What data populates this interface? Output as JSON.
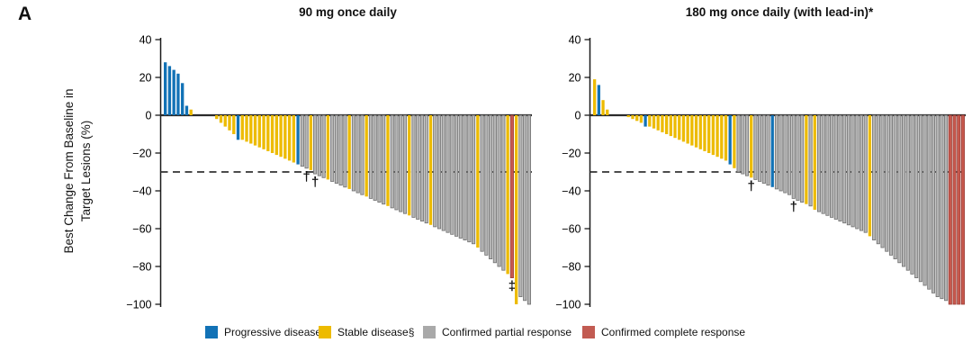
{
  "figure": {
    "panel_label": "A",
    "y_axis_label_line1": "Best Change From Baseline in",
    "y_axis_label_line2": "Target Lesions (%)"
  },
  "legend": {
    "items": [
      {
        "label": "Progressive disease",
        "code": "PD",
        "color": "#1272B6"
      },
      {
        "label": "Stable disease§",
        "code": "SD",
        "color": "#EDBB00"
      },
      {
        "label": "Confirmed partial response",
        "code": "PR",
        "color": "#A9A9A9"
      },
      {
        "label": "Confirmed complete response",
        "code": "CR",
        "color": "#C25B52"
      }
    ]
  },
  "chart_data": [
    {
      "type": "bar",
      "subtype": "waterfall",
      "title": "90 mg once daily",
      "ylabel": "Best Change From Baseline in Target Lesions (%)",
      "ylim": [
        -100,
        40
      ],
      "yticks": [
        40,
        20,
        0,
        -20,
        -40,
        -60,
        -80,
        -100
      ],
      "ytick_labels": [
        "40",
        "20",
        "0",
        "−20",
        "−40",
        "−60",
        "−80",
        "−100"
      ],
      "reference_line": -30,
      "grid": false,
      "bars": [
        [
          28,
          "PD"
        ],
        [
          26,
          "PD"
        ],
        [
          24,
          "PD"
        ],
        [
          22,
          "PD"
        ],
        [
          17,
          "PD"
        ],
        [
          5,
          "PD"
        ],
        [
          3,
          "SD"
        ],
        [
          0,
          "SD"
        ],
        [
          0,
          "SD"
        ],
        [
          0,
          "SD"
        ],
        [
          0,
          "SD"
        ],
        [
          0,
          "SD"
        ],
        [
          -2,
          "SD"
        ],
        [
          -4,
          "SD"
        ],
        [
          -6,
          "SD"
        ],
        [
          -8,
          "SD"
        ],
        [
          -10,
          "SD"
        ],
        [
          -13,
          "PD"
        ],
        [
          -13,
          "SD"
        ],
        [
          -14,
          "SD"
        ],
        [
          -15,
          "SD"
        ],
        [
          -16,
          "SD"
        ],
        [
          -17,
          "SD"
        ],
        [
          -18,
          "SD"
        ],
        [
          -19,
          "SD"
        ],
        [
          -20,
          "SD"
        ],
        [
          -21,
          "SD"
        ],
        [
          -22,
          "SD"
        ],
        [
          -23,
          "SD"
        ],
        [
          -24,
          "SD"
        ],
        [
          -25,
          "SD"
        ],
        [
          -26,
          "PD"
        ],
        [
          -27,
          "PR"
        ],
        [
          -28,
          "PR",
          "†"
        ],
        [
          -29,
          "SD"
        ],
        [
          -31,
          "PR",
          "†"
        ],
        [
          -32,
          "PR"
        ],
        [
          -33,
          "PR"
        ],
        [
          -34,
          "SD"
        ],
        [
          -35,
          "PR"
        ],
        [
          -36,
          "PR"
        ],
        [
          -37,
          "PR"
        ],
        [
          -38,
          "PR"
        ],
        [
          -39,
          "SD"
        ],
        [
          -40,
          "PR"
        ],
        [
          -41,
          "PR"
        ],
        [
          -42,
          "PR"
        ],
        [
          -43,
          "SD"
        ],
        [
          -44,
          "PR"
        ],
        [
          -45,
          "PR"
        ],
        [
          -46,
          "PR"
        ],
        [
          -47,
          "PR"
        ],
        [
          -48,
          "SD"
        ],
        [
          -49,
          "PR"
        ],
        [
          -50,
          "PR"
        ],
        [
          -51,
          "PR"
        ],
        [
          -52,
          "PR"
        ],
        [
          -53,
          "SD"
        ],
        [
          -54,
          "PR"
        ],
        [
          -55,
          "PR"
        ],
        [
          -56,
          "PR"
        ],
        [
          -57,
          "PR"
        ],
        [
          -58,
          "SD"
        ],
        [
          -59,
          "PR"
        ],
        [
          -60,
          "PR"
        ],
        [
          -61,
          "PR"
        ],
        [
          -62,
          "PR"
        ],
        [
          -63,
          "PR"
        ],
        [
          -64,
          "PR"
        ],
        [
          -65,
          "PR"
        ],
        [
          -66,
          "PR"
        ],
        [
          -67,
          "PR"
        ],
        [
          -68,
          "PR"
        ],
        [
          -70,
          "SD"
        ],
        [
          -72,
          "PR"
        ],
        [
          -74,
          "PR"
        ],
        [
          -76,
          "PR"
        ],
        [
          -78,
          "PR"
        ],
        [
          -80,
          "PR"
        ],
        [
          -82,
          "PR"
        ],
        [
          -84,
          "SD"
        ],
        [
          -86,
          "CR",
          "‡"
        ],
        [
          -100,
          "SD"
        ],
        [
          -96,
          "PR"
        ],
        [
          -98,
          "PR"
        ],
        [
          -100,
          "PR"
        ]
      ]
    },
    {
      "type": "bar",
      "subtype": "waterfall",
      "title": "180 mg once daily (with lead-in)*",
      "ylabel": "Best Change From Baseline in Target Lesions (%)",
      "ylim": [
        -100,
        40
      ],
      "yticks": [
        40,
        20,
        0,
        -20,
        -40,
        -60,
        -80,
        -100
      ],
      "ytick_labels": [
        "40",
        "20",
        "0",
        "−20",
        "−40",
        "−60",
        "−80",
        "−100"
      ],
      "reference_line": -30,
      "grid": false,
      "bars": [
        [
          19,
          "SD"
        ],
        [
          16,
          "PD"
        ],
        [
          8,
          "SD"
        ],
        [
          3,
          "SD"
        ],
        [
          0,
          "SD"
        ],
        [
          0,
          "SD"
        ],
        [
          0,
          "SD"
        ],
        [
          0,
          "SD"
        ],
        [
          -1,
          "SD"
        ],
        [
          -2,
          "SD"
        ],
        [
          -3,
          "SD"
        ],
        [
          -4,
          "SD"
        ],
        [
          -6,
          "PD"
        ],
        [
          -6,
          "SD"
        ],
        [
          -7,
          "SD"
        ],
        [
          -8,
          "SD"
        ],
        [
          -9,
          "SD"
        ],
        [
          -10,
          "SD"
        ],
        [
          -11,
          "SD"
        ],
        [
          -12,
          "SD"
        ],
        [
          -13,
          "SD"
        ],
        [
          -14,
          "SD"
        ],
        [
          -15,
          "SD"
        ],
        [
          -16,
          "SD"
        ],
        [
          -17,
          "SD"
        ],
        [
          -18,
          "SD"
        ],
        [
          -19,
          "SD"
        ],
        [
          -20,
          "SD"
        ],
        [
          -21,
          "SD"
        ],
        [
          -22,
          "SD"
        ],
        [
          -23,
          "SD"
        ],
        [
          -24,
          "SD"
        ],
        [
          -26,
          "PD"
        ],
        [
          -28,
          "SD"
        ],
        [
          -30,
          "PR"
        ],
        [
          -31,
          "PR"
        ],
        [
          -32,
          "PR"
        ],
        [
          -33,
          "SD",
          "†"
        ],
        [
          -34,
          "PR"
        ],
        [
          -35,
          "PR"
        ],
        [
          -36,
          "PR"
        ],
        [
          -37,
          "PR"
        ],
        [
          -38,
          "PD"
        ],
        [
          -39,
          "PR"
        ],
        [
          -40,
          "PR"
        ],
        [
          -41,
          "PR"
        ],
        [
          -42,
          "PR"
        ],
        [
          -44,
          "PR",
          "†"
        ],
        [
          -45,
          "PR"
        ],
        [
          -46,
          "PR"
        ],
        [
          -47,
          "SD"
        ],
        [
          -48,
          "PR"
        ],
        [
          -50,
          "SD"
        ],
        [
          -51,
          "PR"
        ],
        [
          -52,
          "PR"
        ],
        [
          -53,
          "PR"
        ],
        [
          -54,
          "PR"
        ],
        [
          -55,
          "PR"
        ],
        [
          -56,
          "PR"
        ],
        [
          -57,
          "PR"
        ],
        [
          -58,
          "PR"
        ],
        [
          -59,
          "PR"
        ],
        [
          -60,
          "PR"
        ],
        [
          -61,
          "PR"
        ],
        [
          -62,
          "PR"
        ],
        [
          -64,
          "SD"
        ],
        [
          -66,
          "PR"
        ],
        [
          -68,
          "PR"
        ],
        [
          -70,
          "PR"
        ],
        [
          -72,
          "PR"
        ],
        [
          -74,
          "PR"
        ],
        [
          -76,
          "PR"
        ],
        [
          -78,
          "PR"
        ],
        [
          -80,
          "PR"
        ],
        [
          -82,
          "PR"
        ],
        [
          -84,
          "PR"
        ],
        [
          -86,
          "PR"
        ],
        [
          -88,
          "PR"
        ],
        [
          -90,
          "PR"
        ],
        [
          -92,
          "PR"
        ],
        [
          -94,
          "PR"
        ],
        [
          -96,
          "PR"
        ],
        [
          -97,
          "PR"
        ],
        [
          -98,
          "PR"
        ],
        [
          -100,
          "CR"
        ],
        [
          -100,
          "CR"
        ],
        [
          -100,
          "CR"
        ],
        [
          -100,
          "CR"
        ]
      ]
    }
  ]
}
